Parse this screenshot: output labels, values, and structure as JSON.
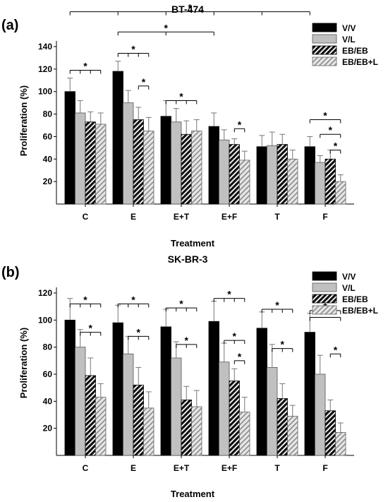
{
  "colors": {
    "vv": "#000000",
    "vl": "#c0c0c0",
    "ebeb": "#111111",
    "ebebl": "#bdbdbd",
    "error_bar": "#777777"
  },
  "chart_data": [
    {
      "type": "bar",
      "panel_label": "(a)",
      "title": "BT-474",
      "xlabel": "Treatment",
      "ylabel": "Proliferation (%)",
      "ylim": [
        0,
        140
      ],
      "yticks": [
        20,
        40,
        60,
        80,
        100,
        120,
        140
      ],
      "grid": false,
      "legend_position": "top-right",
      "categories": [
        "C",
        "E",
        "E+T",
        "E+F",
        "T",
        "F"
      ],
      "series": [
        {
          "name": "V/V",
          "pattern": "solid-black",
          "values": [
            100,
            118,
            78,
            69,
            51,
            51
          ],
          "errors": [
            12,
            9,
            14,
            12,
            10,
            9
          ]
        },
        {
          "name": "V/L",
          "pattern": "solid-gray",
          "values": [
            81,
            90,
            73,
            57,
            52,
            37
          ],
          "errors": [
            11,
            11,
            12,
            9,
            12,
            6
          ]
        },
        {
          "name": "EB/EB",
          "pattern": "black-hatch",
          "values": [
            73,
            75,
            62,
            53,
            53,
            40
          ],
          "errors": [
            9,
            11,
            12,
            5,
            9,
            8
          ]
        },
        {
          "name": "EB/EB+L",
          "pattern": "gray-hatch",
          "values": [
            71,
            65,
            65,
            39,
            40,
            20
          ],
          "errors": [
            10,
            12,
            10,
            8,
            8,
            6
          ]
        }
      ],
      "annotations": [
        {
          "text": "*",
          "from": [
            0,
            0
          ],
          "to": [
            [
              0,
              1
            ],
            [
              0,
              2
            ],
            [
              0,
              3
            ]
          ],
          "level": 119
        },
        {
          "text": "*",
          "from": [
            1,
            0
          ],
          "to": [
            [
              1,
              1
            ],
            [
              1,
              2
            ],
            [
              1,
              3
            ]
          ],
          "level": 134
        },
        {
          "text": "*",
          "from": [
            1,
            2
          ],
          "to": [
            [
              1,
              3
            ]
          ],
          "level": 105
        },
        {
          "text": "*",
          "from": [
            2,
            0
          ],
          "to": [
            [
              2,
              1
            ],
            [
              2,
              2
            ],
            [
              2,
              3
            ]
          ],
          "level": 92
        },
        {
          "text": "*",
          "from": [
            3,
            2
          ],
          "to": [
            [
              3,
              3
            ]
          ],
          "level": 67
        },
        {
          "text": "*",
          "from": [
            5,
            0
          ],
          "to": [
            [
              5,
              3
            ]
          ],
          "level": 75
        },
        {
          "text": "*",
          "from": [
            5,
            1
          ],
          "to": [
            [
              5,
              3
            ]
          ],
          "level": 62
        },
        {
          "text": "*",
          "from": [
            5,
            2
          ],
          "to": [
            [
              5,
              3
            ]
          ],
          "level": 48
        },
        {
          "text": "*",
          "from": [
            1,
            0
          ],
          "to": [
            [
              2,
              0
            ],
            [
              3,
              0
            ]
          ],
          "level": 153
        },
        {
          "text": "*",
          "from": [
            0,
            0
          ],
          "to": [
            [
              1,
              0
            ],
            [
              2,
              0
            ],
            [
              3,
              0
            ],
            [
              4,
              0
            ],
            [
              5,
              0
            ]
          ],
          "level": 171
        }
      ]
    },
    {
      "type": "bar",
      "panel_label": "(b)",
      "title": "SK-BR-3",
      "xlabel": "Treatment",
      "ylabel": "Proliferation (%)",
      "ylim": [
        0,
        120
      ],
      "yticks": [
        20,
        40,
        60,
        80,
        100,
        120
      ],
      "grid": false,
      "legend_position": "top-right",
      "categories": [
        "C",
        "E",
        "E+T",
        "E+F",
        "T",
        "F"
      ],
      "series": [
        {
          "name": "V/V",
          "pattern": "solid-black",
          "values": [
            100,
            98,
            95,
            99,
            94,
            91
          ],
          "errors": [
            16,
            13,
            13,
            15,
            12,
            14
          ]
        },
        {
          "name": "V/L",
          "pattern": "solid-gray",
          "values": [
            80,
            75,
            72,
            69,
            65,
            60
          ],
          "errors": [
            13,
            13,
            12,
            14,
            17,
            14
          ]
        },
        {
          "name": "EB/EB",
          "pattern": "black-hatch",
          "values": [
            59,
            52,
            41,
            55,
            42,
            33
          ],
          "errors": [
            13,
            13,
            10,
            9,
            11,
            8
          ]
        },
        {
          "name": "EB/EB+L",
          "pattern": "gray-hatch",
          "values": [
            43,
            35,
            36,
            32,
            29,
            17
          ],
          "errors": [
            10,
            12,
            12,
            11,
            8,
            7
          ]
        }
      ],
      "annotations": [
        {
          "text": "*",
          "from": [
            0,
            0
          ],
          "to": [
            [
              0,
              1
            ],
            [
              0,
              2
            ],
            [
              0,
              3
            ]
          ],
          "level": 112
        },
        {
          "text": "*",
          "from": [
            0,
            1
          ],
          "to": [
            [
              0,
              2
            ],
            [
              0,
              3
            ]
          ],
          "level": 91
        },
        {
          "text": "*",
          "from": [
            1,
            0
          ],
          "to": [
            [
              1,
              1
            ],
            [
              1,
              2
            ],
            [
              1,
              3
            ]
          ],
          "level": 112
        },
        {
          "text": "*",
          "from": [
            1,
            1
          ],
          "to": [
            [
              1,
              2
            ],
            [
              1,
              3
            ]
          ],
          "level": 88
        },
        {
          "text": "*",
          "from": [
            2,
            0
          ],
          "to": [
            [
              2,
              1
            ],
            [
              2,
              2
            ],
            [
              2,
              3
            ]
          ],
          "level": 109
        },
        {
          "text": "*",
          "from": [
            2,
            1
          ],
          "to": [
            [
              2,
              2
            ],
            [
              2,
              3
            ]
          ],
          "level": 82
        },
        {
          "text": "*",
          "from": [
            3,
            0
          ],
          "to": [
            [
              3,
              1
            ],
            [
              3,
              2
            ],
            [
              3,
              3
            ]
          ],
          "level": 116
        },
        {
          "text": "*",
          "from": [
            3,
            1
          ],
          "to": [
            [
              3,
              2
            ],
            [
              3,
              3
            ]
          ],
          "level": 85
        },
        {
          "text": "*",
          "from": [
            3,
            2
          ],
          "to": [
            [
              3,
              3
            ]
          ],
          "level": 70
        },
        {
          "text": "*",
          "from": [
            4,
            0
          ],
          "to": [
            [
              4,
              1
            ],
            [
              4,
              2
            ],
            [
              4,
              3
            ]
          ],
          "level": 108
        },
        {
          "text": "*",
          "from": [
            4,
            1
          ],
          "to": [
            [
              4,
              2
            ],
            [
              4,
              3
            ]
          ],
          "level": 79
        },
        {
          "text": "*",
          "from": [
            5,
            0
          ],
          "to": [
            [
              5,
              1
            ],
            [
              5,
              2
            ],
            [
              5,
              3
            ]
          ],
          "level": 107
        },
        {
          "text": "*",
          "from": [
            5,
            0
          ],
          "to": [
            [
              5,
              3
            ]
          ],
          "level": 102
        },
        {
          "text": "*",
          "from": [
            5,
            2
          ],
          "to": [
            [
              5,
              3
            ]
          ],
          "level": 75
        }
      ]
    }
  ]
}
